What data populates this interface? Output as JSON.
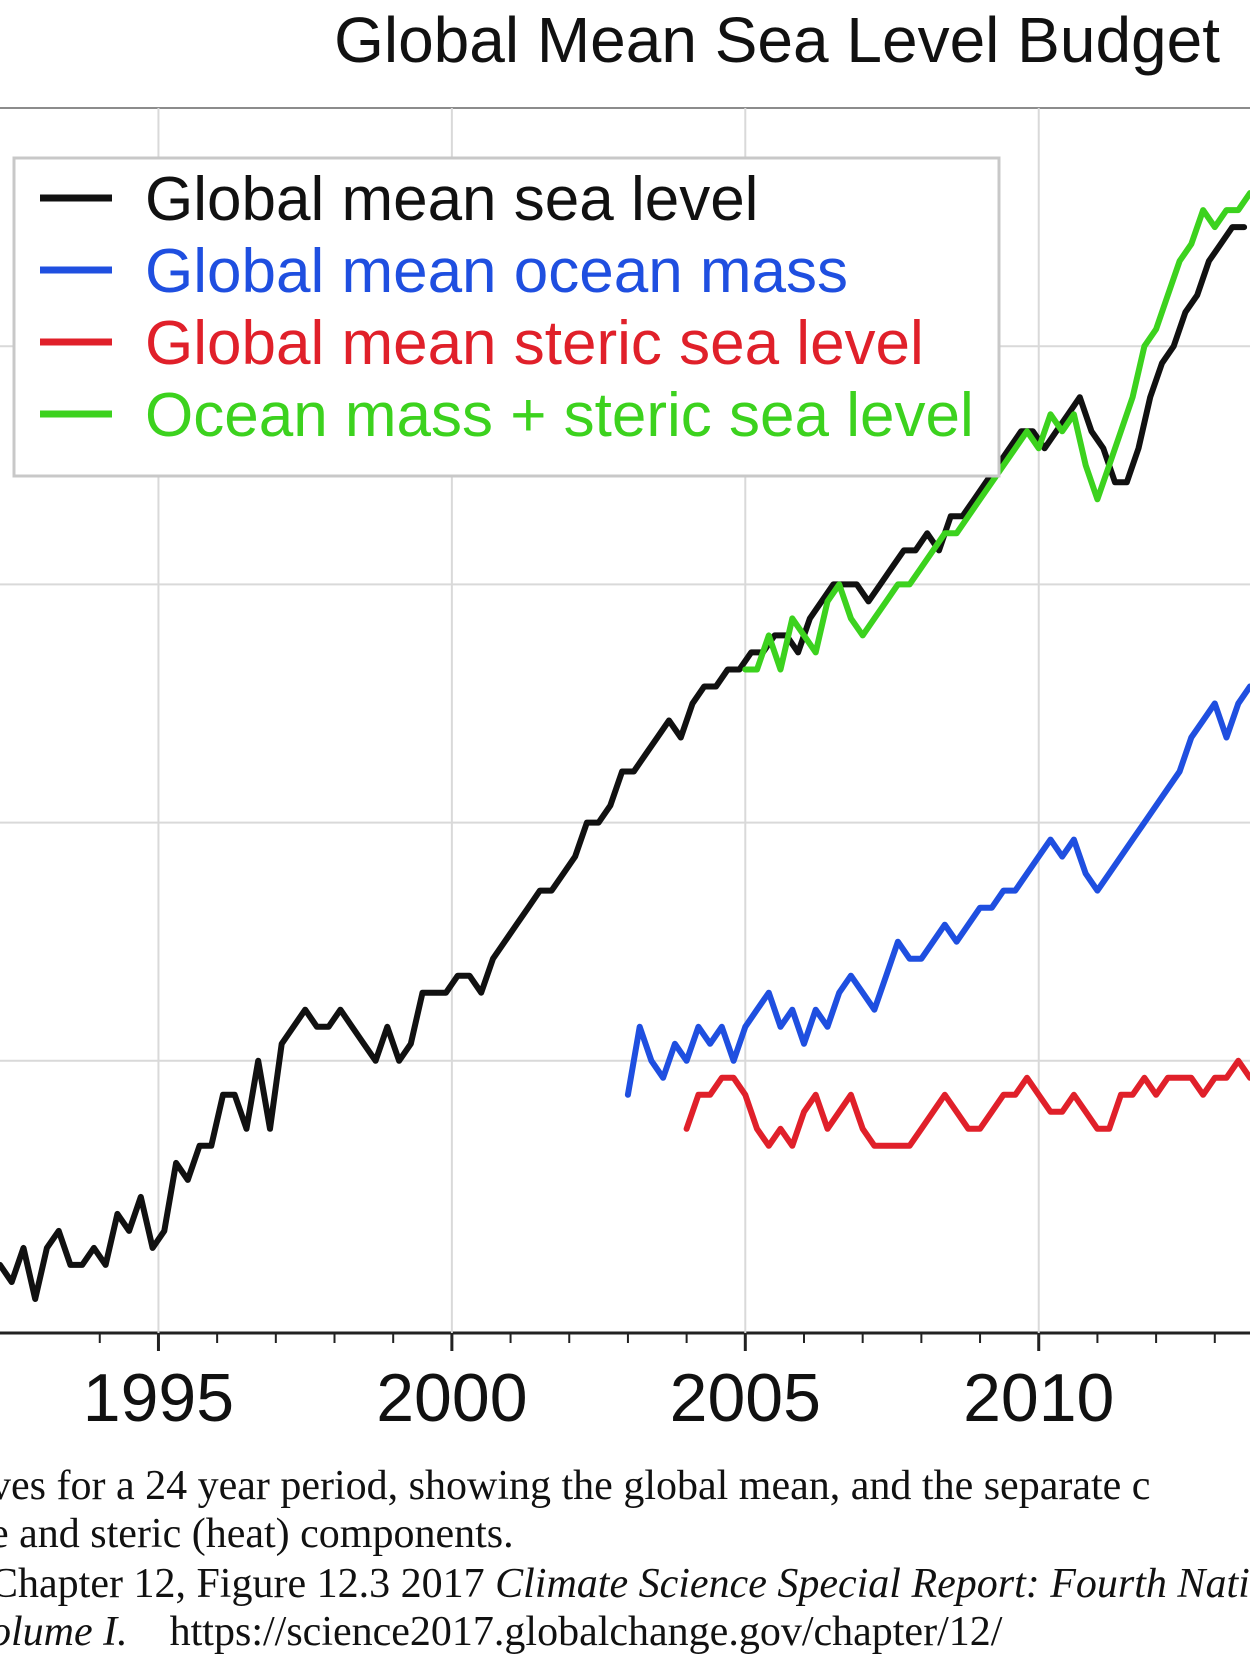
{
  "chart_data": {
    "type": "line",
    "title": "Global Mean Sea Level Budget",
    "xlabel": "",
    "ylabel": "",
    "xlim": [
      1992.3,
      2013.6
    ],
    "ylim": [
      -26,
      46
    ],
    "x_ticks": [
      1995,
      2000,
      2005,
      2010
    ],
    "x_minor_ticks": [
      1994,
      1996,
      1997,
      1998,
      1999,
      2001,
      2002,
      2003,
      2004,
      2006,
      2007,
      2008,
      2009,
      2011,
      2012,
      2013
    ],
    "y_grid": [
      -10,
      4,
      18,
      32
    ],
    "grid": true,
    "legend_position": "top-left",
    "series": [
      {
        "name": "Global mean sea level",
        "color": "#111111",
        "x": [
          1992.3,
          1992.5,
          1992.7,
          1992.9,
          1993.1,
          1993.3,
          1993.5,
          1993.7,
          1993.9,
          1994.1,
          1994.3,
          1994.5,
          1994.7,
          1994.9,
          1995.1,
          1995.3,
          1995.5,
          1995.7,
          1995.9,
          1996.1,
          1996.3,
          1996.5,
          1996.7,
          1996.9,
          1997.1,
          1997.3,
          1997.5,
          1997.7,
          1997.9,
          1998.1,
          1998.3,
          1998.5,
          1998.7,
          1998.9,
          1999.1,
          1999.3,
          1999.5,
          1999.7,
          1999.9,
          2000.1,
          2000.3,
          2000.5,
          2000.7,
          2000.9,
          2001.1,
          2001.3,
          2001.5,
          2001.7,
          2001.9,
          2002.1,
          2002.3,
          2002.5,
          2002.7,
          2002.9,
          2003.1,
          2003.3,
          2003.5,
          2003.7,
          2003.9,
          2004.1,
          2004.3,
          2004.5,
          2004.7,
          2004.9,
          2005.1,
          2005.3,
          2005.5,
          2005.7,
          2005.9,
          2006.1,
          2006.3,
          2006.5,
          2006.7,
          2006.9,
          2007.1,
          2007.3,
          2007.5,
          2007.7,
          2007.9,
          2008.1,
          2008.3,
          2008.5,
          2008.7,
          2008.9,
          2009.1,
          2009.3,
          2009.5,
          2009.7,
          2009.9,
          2010.1,
          2010.3,
          2010.5,
          2010.7,
          2010.9,
          2011.1,
          2011.3,
          2011.5,
          2011.7,
          2011.9,
          2012.1,
          2012.3,
          2012.5,
          2012.7,
          2012.9,
          2013.1,
          2013.3,
          2013.5
        ],
        "values": [
          -22,
          -23,
          -21,
          -24,
          -21,
          -20,
          -22,
          -22,
          -21,
          -22,
          -19,
          -20,
          -18,
          -21,
          -20,
          -16,
          -17,
          -15,
          -15,
          -12,
          -12,
          -14,
          -10,
          -14,
          -9,
          -8,
          -7,
          -8,
          -8,
          -7,
          -8,
          -9,
          -10,
          -8,
          -10,
          -9,
          -6,
          -6,
          -6,
          -5,
          -5,
          -6,
          -4,
          -3,
          -2,
          -1,
          0,
          0,
          1,
          2,
          4,
          4,
          5,
          7,
          7,
          8,
          9,
          10,
          9,
          11,
          12,
          12,
          13,
          13,
          14,
          14,
          15,
          15,
          14,
          16,
          17,
          18,
          18,
          18,
          17,
          18,
          19,
          20,
          20,
          21,
          20,
          22,
          22,
          23,
          24,
          25,
          26,
          27,
          27,
          26,
          27,
          28,
          29,
          27,
          26,
          24,
          24,
          26,
          29,
          31,
          32,
          34,
          35,
          37,
          38,
          39,
          39
        ]
      },
      {
        "name": "Global mean ocean mass",
        "color": "#1f4fe0",
        "x": [
          2003.0,
          2003.2,
          2003.4,
          2003.6,
          2003.8,
          2004.0,
          2004.2,
          2004.4,
          2004.6,
          2004.8,
          2005.0,
          2005.2,
          2005.4,
          2005.6,
          2005.8,
          2006.0,
          2006.2,
          2006.4,
          2006.6,
          2006.8,
          2007.0,
          2007.2,
          2007.4,
          2007.6,
          2007.8,
          2008.0,
          2008.2,
          2008.4,
          2008.6,
          2008.8,
          2009.0,
          2009.2,
          2009.4,
          2009.6,
          2009.8,
          2010.0,
          2010.2,
          2010.4,
          2010.6,
          2010.8,
          2011.0,
          2011.2,
          2011.4,
          2011.6,
          2011.8,
          2012.0,
          2012.2,
          2012.4,
          2012.6,
          2012.8,
          2013.0,
          2013.2,
          2013.4,
          2013.6
        ],
        "values": [
          -12,
          -8,
          -10,
          -11,
          -9,
          -10,
          -8,
          -9,
          -8,
          -10,
          -8,
          -7,
          -6,
          -8,
          -7,
          -9,
          -7,
          -8,
          -6,
          -5,
          -6,
          -7,
          -5,
          -3,
          -4,
          -4,
          -3,
          -2,
          -3,
          -2,
          -1,
          -1,
          0,
          0,
          1,
          2,
          3,
          2,
          3,
          1,
          0,
          1,
          2,
          3,
          4,
          5,
          6,
          7,
          9,
          10,
          11,
          9,
          11,
          12
        ]
      },
      {
        "name": "Global mean steric sea level",
        "color": "#e0202a",
        "x": [
          2004.0,
          2004.2,
          2004.4,
          2004.6,
          2004.8,
          2005.0,
          2005.2,
          2005.4,
          2005.6,
          2005.8,
          2006.0,
          2006.2,
          2006.4,
          2006.6,
          2006.8,
          2007.0,
          2007.2,
          2007.4,
          2007.6,
          2007.8,
          2008.0,
          2008.2,
          2008.4,
          2008.6,
          2008.8,
          2009.0,
          2009.2,
          2009.4,
          2009.6,
          2009.8,
          2010.0,
          2010.2,
          2010.4,
          2010.6,
          2010.8,
          2011.0,
          2011.2,
          2011.4,
          2011.6,
          2011.8,
          2012.0,
          2012.2,
          2012.4,
          2012.6,
          2012.8,
          2013.0,
          2013.2,
          2013.4,
          2013.6
        ],
        "values": [
          -14,
          -12,
          -12,
          -11,
          -11,
          -12,
          -14,
          -15,
          -14,
          -15,
          -13,
          -12,
          -14,
          -13,
          -12,
          -14,
          -15,
          -15,
          -15,
          -15,
          -14,
          -13,
          -12,
          -13,
          -14,
          -14,
          -13,
          -12,
          -12,
          -11,
          -12,
          -13,
          -13,
          -12,
          -13,
          -14,
          -14,
          -12,
          -12,
          -11,
          -12,
          -11,
          -11,
          -11,
          -12,
          -11,
          -11,
          -10,
          -11
        ]
      },
      {
        "name": "Ocean mass + steric sea level",
        "color": "#3cd21e",
        "x": [
          2005.0,
          2005.2,
          2005.4,
          2005.6,
          2005.8,
          2006.0,
          2006.2,
          2006.4,
          2006.6,
          2006.8,
          2007.0,
          2007.2,
          2007.4,
          2007.6,
          2007.8,
          2008.0,
          2008.2,
          2008.4,
          2008.6,
          2008.8,
          2009.0,
          2009.2,
          2009.4,
          2009.6,
          2009.8,
          2010.0,
          2010.2,
          2010.4,
          2010.6,
          2010.8,
          2011.0,
          2011.2,
          2011.4,
          2011.6,
          2011.8,
          2012.0,
          2012.2,
          2012.4,
          2012.6,
          2012.8,
          2013.0,
          2013.2,
          2013.4,
          2013.6
        ],
        "values": [
          13,
          13,
          15,
          13,
          16,
          15,
          14,
          17,
          18,
          16,
          15,
          16,
          17,
          18,
          18,
          19,
          20,
          21,
          21,
          22,
          23,
          24,
          25,
          26,
          27,
          26,
          28,
          27,
          28,
          25,
          23,
          25,
          27,
          29,
          32,
          33,
          35,
          37,
          38,
          40,
          39,
          40,
          40,
          41
        ]
      }
    ]
  },
  "caption": {
    "line1": "ves for a 24 year period, showing the global mean, and the separate c",
    "line2": "e and steric (heat) components.",
    "line3_plain": "Chapter 12, Figure 12.3 2017 ",
    "line3_italic": "Climate Science Special Report: Fourth Natio",
    "line4_italic": "olume I.",
    "line4_plain": "    https://science2017.globalchange.gov/chapter/12/"
  }
}
